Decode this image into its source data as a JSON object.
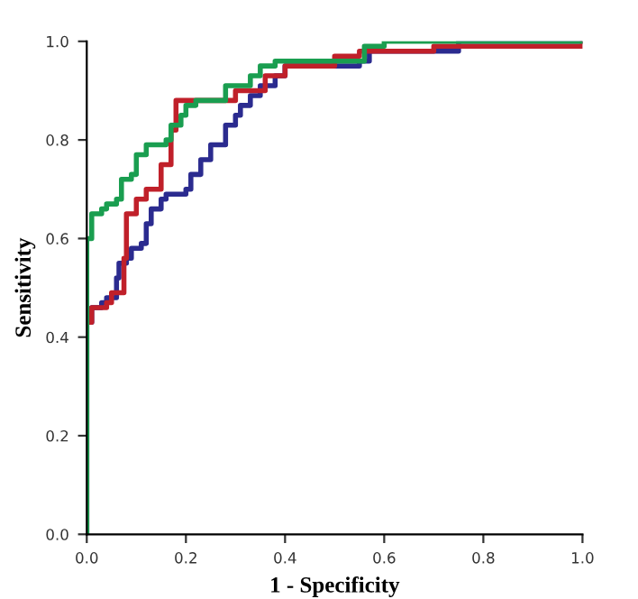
{
  "chart_data": {
    "type": "step",
    "xlabel": "1 - Specificity",
    "ylabel": "Sensitivity",
    "xlim": [
      0,
      1
    ],
    "ylim": [
      0,
      1
    ],
    "xticks": [
      {
        "value": 0,
        "label": "0.0"
      },
      {
        "value": 0.2,
        "label": "0.2"
      },
      {
        "value": 0.4,
        "label": "0.4"
      },
      {
        "value": 0.6,
        "label": "0.6"
      },
      {
        "value": 0.8,
        "label": "0.8"
      },
      {
        "value": 1,
        "label": "1.0"
      }
    ],
    "yticks": [
      {
        "value": 0,
        "label": "0.0"
      },
      {
        "value": 0.2,
        "label": "0.2"
      },
      {
        "value": 0.4,
        "label": "0.4"
      },
      {
        "value": 0.6,
        "label": "0.6"
      },
      {
        "value": 0.8,
        "label": "0.8"
      },
      {
        "value": 1,
        "label": "1.0"
      }
    ],
    "grid": false,
    "legend": false,
    "series": [
      {
        "color": "#2b2b8f",
        "x": [
          0,
          0,
          0.01,
          0.03,
          0.04,
          0.06,
          0.065,
          0.08,
          0.09,
          0.11,
          0.12,
          0.13,
          0.15,
          0.16,
          0.2,
          0.21,
          0.23,
          0.25,
          0.28,
          0.3,
          0.31,
          0.33,
          0.35,
          0.38,
          0.4,
          0.55,
          0.57,
          0.75,
          1
        ],
        "values": [
          0,
          0.43,
          0.46,
          0.47,
          0.48,
          0.52,
          0.55,
          0.56,
          0.58,
          0.59,
          0.63,
          0.66,
          0.68,
          0.69,
          0.7,
          0.73,
          0.76,
          0.79,
          0.83,
          0.85,
          0.87,
          0.89,
          0.91,
          0.93,
          0.95,
          0.96,
          0.98,
          1,
          1
        ]
      },
      {
        "color": "#c0202a",
        "x": [
          0,
          0,
          0.01,
          0.04,
          0.05,
          0.075,
          0.08,
          0.1,
          0.12,
          0.15,
          0.17,
          0.18,
          0.3,
          0.36,
          0.4,
          0.5,
          0.55,
          0.7,
          1
        ],
        "values": [
          0,
          0.43,
          0.46,
          0.47,
          0.49,
          0.56,
          0.65,
          0.68,
          0.7,
          0.75,
          0.82,
          0.88,
          0.9,
          0.93,
          0.95,
          0.97,
          0.98,
          0.99,
          1
        ]
      },
      {
        "color": "#1a9e50",
        "x": [
          0,
          0,
          0.01,
          0.03,
          0.04,
          0.06,
          0.07,
          0.09,
          0.1,
          0.12,
          0.16,
          0.17,
          0.19,
          0.2,
          0.22,
          0.28,
          0.33,
          0.35,
          0.38,
          0.56,
          0.6,
          1
        ],
        "values": [
          0,
          0.6,
          0.65,
          0.66,
          0.67,
          0.68,
          0.72,
          0.73,
          0.77,
          0.79,
          0.8,
          0.83,
          0.85,
          0.87,
          0.88,
          0.91,
          0.93,
          0.95,
          0.96,
          0.99,
          1,
          1
        ]
      }
    ]
  }
}
